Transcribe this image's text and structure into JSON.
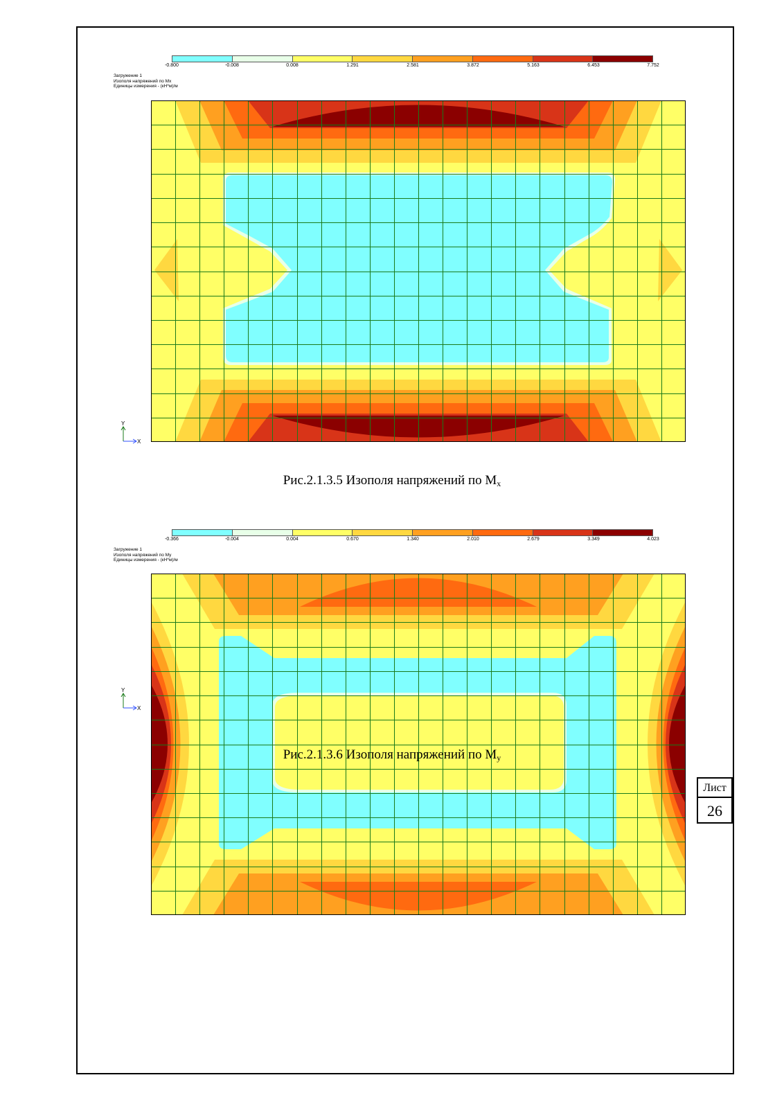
{
  "palette": [
    "#80ffff",
    "#e8ffe8",
    "#ffff66",
    "#ffd840",
    "#ffa020",
    "#ff6a10",
    "#d83418",
    "#8b0000"
  ],
  "grid_color": "#1a7a1a",
  "figures": [
    {
      "legend_ticks": [
        "-0.800",
        "-0.008",
        "0.008",
        "1.291",
        "2.581",
        "3.872",
        "5.163",
        "6.453",
        "7.752"
      ],
      "meta_lines": [
        "Загружение  1",
        "Изополя напряжений по Mx",
        "Единицы измерения - (кН*м)/м"
      ],
      "axis_y": "Y",
      "axis_x": "X",
      "caption_main": "Рис.2.1.3.5 Изополя напряжений по M",
      "caption_sub": "x"
    },
    {
      "legend_ticks": [
        "-0.366",
        "-0.004",
        "0.004",
        "0.670",
        "1.340",
        "2.010",
        "2.679",
        "3.349",
        "4.023"
      ],
      "meta_lines": [
        "Загружение  1",
        "Изополя напряжений по My",
        "Единицы измерения - (кН*м)/м"
      ],
      "axis_y": "Y",
      "axis_x": "X",
      "caption_main": "Рис.2.1.3.6 Изополя напряжений по M",
      "caption_sub": "y"
    }
  ],
  "sheet": {
    "label": "Лист",
    "number": "26"
  }
}
